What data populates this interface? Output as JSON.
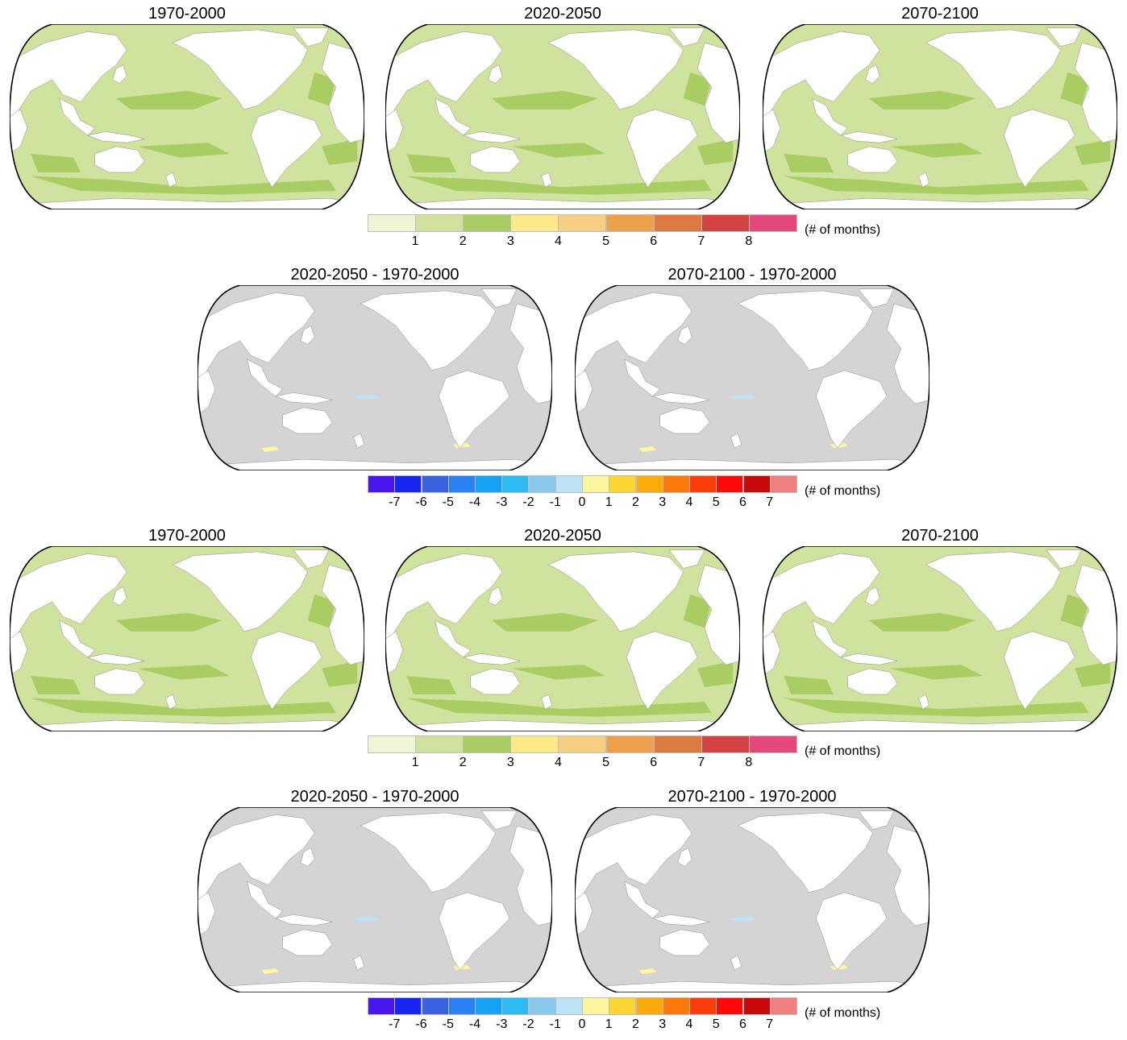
{
  "groups": [
    {
      "maps": [
        {
          "title": "1970-2000",
          "kind": "count"
        },
        {
          "title": "2020-2050",
          "kind": "count"
        },
        {
          "title": "2070-2100",
          "kind": "count"
        }
      ],
      "colorbar": {
        "kind": "count",
        "colors": [
          "#f0f5d5",
          "#cfe29e",
          "#a9cd62",
          "#fde98a",
          "#f6cf82",
          "#eca14a",
          "#dc7a40",
          "#d34341",
          "#e2487a"
        ],
        "ticks": [
          "1",
          "2",
          "3",
          "4",
          "5",
          "6",
          "7",
          "8"
        ],
        "unit": "(# of months)"
      }
    },
    {
      "maps": [
        {
          "title": "2020-2050 - 1970-2000",
          "kind": "diff"
        },
        {
          "title": "2070-2100 - 1970-2000",
          "kind": "diff"
        }
      ],
      "colorbar": {
        "kind": "diff",
        "colors": [
          "#4a16f0",
          "#1625f0",
          "#3a62e0",
          "#2b82f4",
          "#14a2f5",
          "#2cbcf3",
          "#89c8ec",
          "#bee3f6",
          "#fff59e",
          "#fdd532",
          "#fdab0a",
          "#fd7a0a",
          "#fd3d0a",
          "#fc0a0a",
          "#c80a0a",
          "#f08080"
        ],
        "ticks": [
          "-7",
          "-6",
          "-5",
          "-4",
          "-3",
          "-2",
          "-1",
          "0",
          "1",
          "2",
          "3",
          "4",
          "5",
          "6",
          "7"
        ],
        "unit": "(# of months)"
      }
    },
    {
      "maps": [
        {
          "title": "1970-2000",
          "kind": "count"
        },
        {
          "title": "2020-2050",
          "kind": "count"
        },
        {
          "title": "2070-2100",
          "kind": "count"
        }
      ],
      "colorbar": {
        "kind": "count",
        "colors": [
          "#f0f5d5",
          "#cfe29e",
          "#a9cd62",
          "#fde98a",
          "#f6cf82",
          "#eca14a",
          "#dc7a40",
          "#d34341",
          "#e2487a"
        ],
        "ticks": [
          "1",
          "2",
          "3",
          "4",
          "5",
          "6",
          "7",
          "8"
        ],
        "unit": "(# of months)"
      }
    },
    {
      "maps": [
        {
          "title": "2020-2050 - 1970-2000",
          "kind": "diff"
        },
        {
          "title": "2070-2100 - 1970-2000",
          "kind": "diff"
        }
      ],
      "colorbar": {
        "kind": "diff",
        "colors": [
          "#4a16f0",
          "#1625f0",
          "#3a62e0",
          "#2b82f4",
          "#14a2f5",
          "#2cbcf3",
          "#89c8ec",
          "#bee3f6",
          "#fff59e",
          "#fdd532",
          "#fdab0a",
          "#fd7a0a",
          "#fd3d0a",
          "#fc0a0a",
          "#c80a0a",
          "#f08080"
        ],
        "ticks": [
          "-7",
          "-6",
          "-5",
          "-4",
          "-3",
          "-2",
          "-1",
          "0",
          "1",
          "2",
          "3",
          "4",
          "5",
          "6",
          "7"
        ],
        "unit": "(# of months)"
      }
    }
  ],
  "colors": {
    "ocean_count": "#cfe29e",
    "ocean_count_high": "#a9cd62",
    "ocean_diff": "#d4d4d4",
    "land": "#ffffff",
    "coast": "#808080",
    "frame": "#000000"
  }
}
